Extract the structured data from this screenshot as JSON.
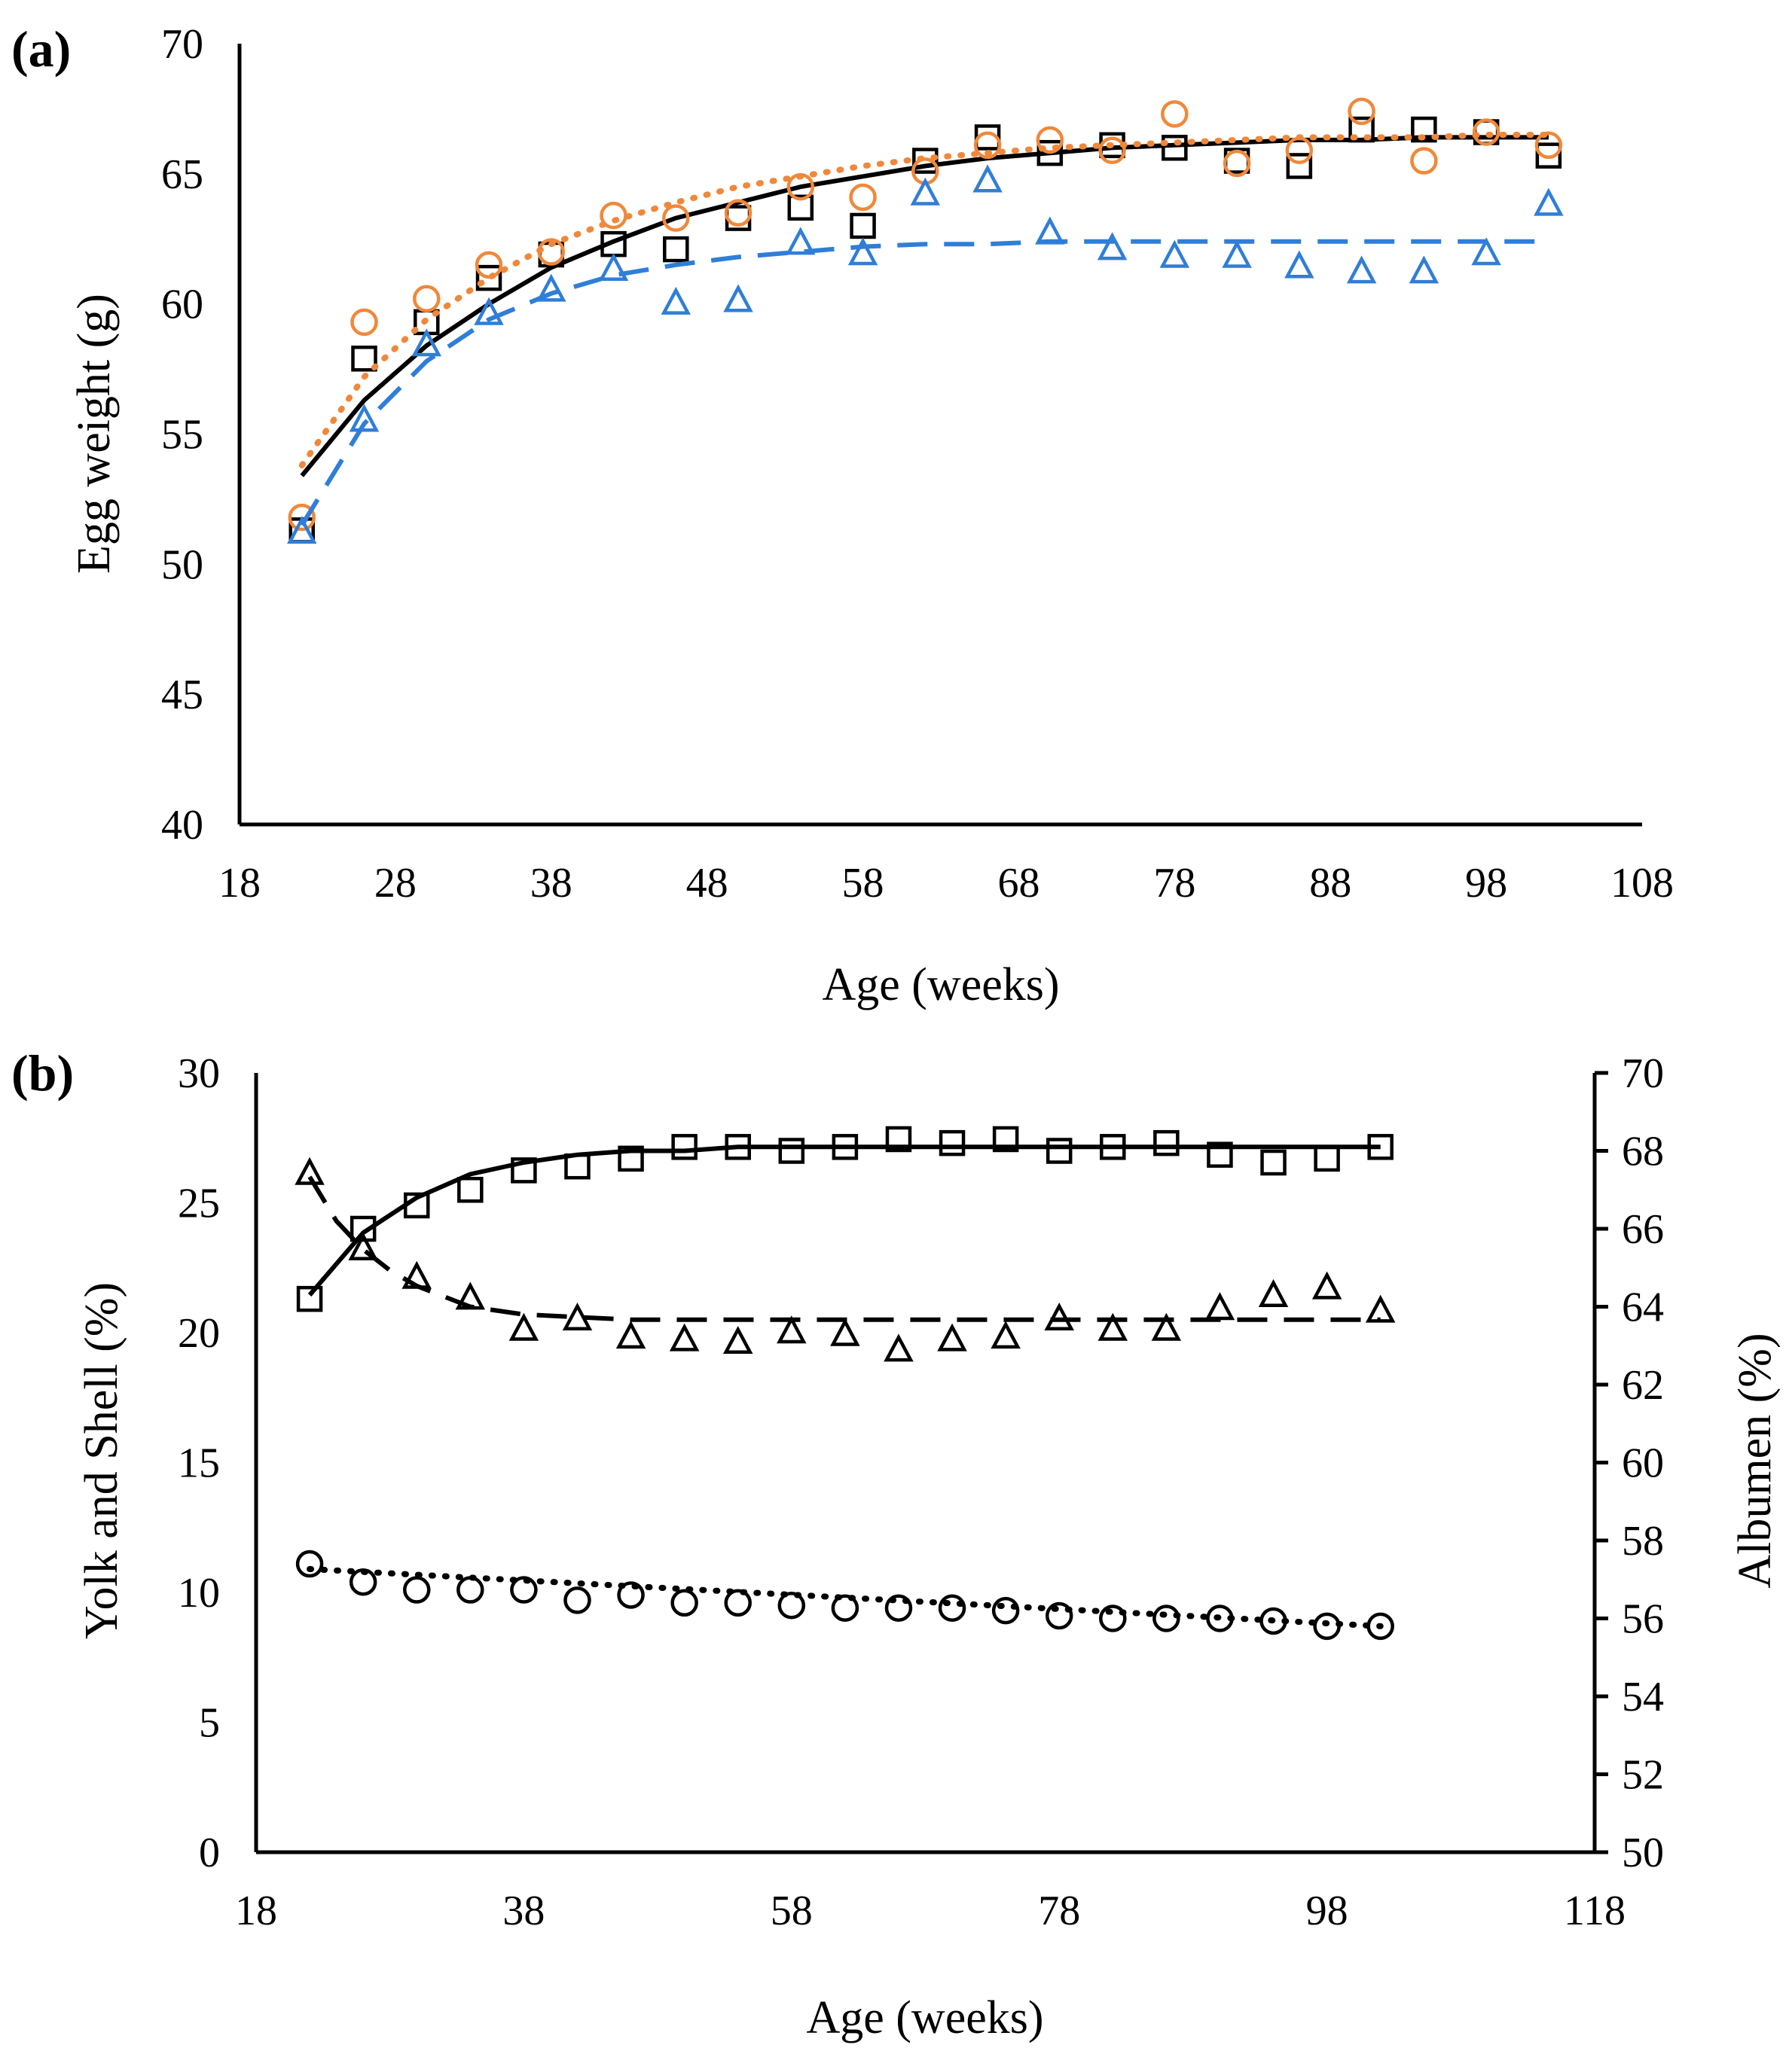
{
  "colors": {
    "black": "#000000",
    "orange": "#f0883a",
    "blue": "#2f7ed8"
  },
  "chart_data": [
    {
      "panel_label": "(a)",
      "type": "scatter",
      "xlabel": "Age (weeks)",
      "ylabel": "Egg weight (g)",
      "xlim": [
        18,
        108
      ],
      "ylim": [
        40,
        70
      ],
      "xticks": [
        18,
        28,
        38,
        48,
        58,
        68,
        78,
        88,
        98,
        108
      ],
      "yticks": [
        40,
        45,
        50,
        55,
        60,
        65,
        70
      ],
      "series": [
        {
          "name": "Squares (solid trend)",
          "marker": "square",
          "color": "#000000",
          "trend_style": "solid",
          "x": [
            22,
            26,
            30,
            34,
            38,
            42,
            46,
            50,
            54,
            58,
            62,
            66,
            70,
            74,
            78,
            82,
            86,
            90,
            94,
            98,
            102
          ],
          "y": [
            51.3,
            57.9,
            59.3,
            61.0,
            61.9,
            62.3,
            62.1,
            63.3,
            63.7,
            63.0,
            65.5,
            66.4,
            65.8,
            66.1,
            66.0,
            65.5,
            65.3,
            66.7,
            66.7,
            66.6,
            65.7
          ],
          "trend_x": [
            22,
            26,
            30,
            34,
            38,
            42,
            46,
            50,
            54,
            58,
            62,
            66,
            70,
            74,
            78,
            82,
            86,
            90,
            94,
            98,
            102
          ],
          "trend_y": [
            53.4,
            56.3,
            58.4,
            60.0,
            61.4,
            62.4,
            63.3,
            63.9,
            64.5,
            64.9,
            65.3,
            65.6,
            65.8,
            66.0,
            66.1,
            66.2,
            66.3,
            66.3,
            66.4,
            66.4,
            66.4
          ]
        },
        {
          "name": "Circles (dotted trend)",
          "marker": "circle",
          "color": "#f0883a",
          "trend_style": "dotted",
          "x": [
            22,
            26,
            30,
            34,
            38,
            42,
            46,
            50,
            54,
            58,
            62,
            66,
            70,
            74,
            78,
            82,
            86,
            90,
            94,
            98,
            102
          ],
          "y": [
            51.8,
            59.3,
            60.2,
            61.5,
            62.0,
            63.4,
            63.3,
            63.5,
            64.5,
            64.1,
            65.1,
            66.1,
            66.3,
            65.9,
            67.3,
            65.4,
            65.9,
            67.4,
            65.5,
            66.6,
            66.1
          ],
          "trend_x": [
            22,
            26,
            30,
            34,
            38,
            42,
            46,
            50,
            54,
            58,
            62,
            66,
            70,
            74,
            78,
            82,
            86,
            90,
            94,
            98,
            102
          ],
          "trend_y": [
            53.8,
            57.2,
            59.4,
            61.0,
            62.3,
            63.2,
            63.9,
            64.5,
            64.9,
            65.3,
            65.6,
            65.8,
            66.0,
            66.1,
            66.2,
            66.3,
            66.4,
            66.4,
            66.4,
            66.5,
            66.5
          ]
        },
        {
          "name": "Triangles (dashed trend)",
          "marker": "triangle",
          "color": "#2f7ed8",
          "trend_style": "dashed",
          "x": [
            22,
            26,
            30,
            34,
            38,
            42,
            46,
            50,
            54,
            58,
            62,
            66,
            70,
            74,
            78,
            82,
            86,
            90,
            94,
            98,
            102
          ],
          "y": [
            51.2,
            55.5,
            58.4,
            59.6,
            60.5,
            61.3,
            60.0,
            60.1,
            62.3,
            61.9,
            64.2,
            64.7,
            62.7,
            62.1,
            61.8,
            61.8,
            61.4,
            61.2,
            61.2,
            61.9,
            63.8
          ],
          "trend_x": [
            22,
            26,
            30,
            34,
            38,
            42,
            46,
            50,
            54,
            58,
            62,
            66,
            70,
            74,
            78,
            82,
            86,
            90,
            94,
            98,
            102
          ],
          "trend_y": [
            51.5,
            55.4,
            57.8,
            59.4,
            60.4,
            61.1,
            61.5,
            61.8,
            62.0,
            62.2,
            62.3,
            62.3,
            62.4,
            62.4,
            62.4,
            62.4,
            62.4,
            62.4,
            62.4,
            62.4,
            62.4
          ]
        }
      ]
    },
    {
      "panel_label": "(b)",
      "type": "scatter",
      "xlabel": "Age (weeks)",
      "ylabel": "Yolk and Shell (%)",
      "ylabel_right": "Albumen (%)",
      "xlim": [
        18,
        118
      ],
      "ylim": [
        0,
        30
      ],
      "ylim_right": [
        50,
        70
      ],
      "xticks": [
        18,
        38,
        58,
        78,
        98,
        118
      ],
      "yticks": [
        0,
        5,
        10,
        15,
        20,
        25,
        30
      ],
      "yticks_right": [
        50,
        52,
        54,
        56,
        58,
        60,
        62,
        64,
        66,
        68,
        70
      ],
      "series": [
        {
          "name": "Squares (solid trend)",
          "marker": "square",
          "axis": "right",
          "color": "#000000",
          "trend_style": "solid",
          "x": [
            22,
            26,
            30,
            34,
            38,
            42,
            46,
            50,
            54,
            58,
            62,
            66,
            70,
            74,
            78,
            82,
            86,
            90,
            94,
            98,
            102
          ],
          "y": [
            64.2,
            66.0,
            66.6,
            67.0,
            67.5,
            67.6,
            67.8,
            68.1,
            68.1,
            68.0,
            68.1,
            68.3,
            68.2,
            68.3,
            68.0,
            68.1,
            68.2,
            67.9,
            67.7,
            67.8,
            68.1
          ],
          "trend_x": [
            22,
            26,
            30,
            34,
            38,
            42,
            46,
            50,
            54,
            58,
            62,
            66,
            70,
            74,
            78,
            82,
            86,
            90,
            94,
            98,
            102
          ],
          "trend_y": [
            64.3,
            65.9,
            66.8,
            67.4,
            67.7,
            67.9,
            68.0,
            68.0,
            68.1,
            68.1,
            68.1,
            68.1,
            68.1,
            68.1,
            68.1,
            68.1,
            68.1,
            68.1,
            68.1,
            68.1,
            68.1
          ]
        },
        {
          "name": "Triangles (dashed trend)",
          "marker": "triangle",
          "axis": "left",
          "color": "#000000",
          "trend_style": "dashed",
          "x": [
            22,
            26,
            30,
            34,
            38,
            42,
            46,
            50,
            54,
            58,
            62,
            66,
            70,
            74,
            78,
            82,
            86,
            90,
            94,
            98,
            102
          ],
          "y": [
            26.1,
            23.2,
            22.1,
            21.3,
            20.1,
            20.5,
            19.8,
            19.7,
            19.6,
            20.0,
            19.9,
            19.3,
            19.7,
            19.8,
            20.5,
            20.1,
            20.1,
            20.9,
            21.4,
            21.7,
            20.8
          ],
          "trend_x": [
            22,
            24,
            26,
            28,
            30,
            34,
            38,
            42,
            46,
            50,
            54,
            58,
            62,
            66,
            70,
            74,
            78,
            82,
            86,
            90,
            94,
            98,
            102
          ],
          "trend_y": [
            26.0,
            24.3,
            23.2,
            22.4,
            21.8,
            21.0,
            20.7,
            20.6,
            20.5,
            20.5,
            20.5,
            20.5,
            20.5,
            20.5,
            20.5,
            20.5,
            20.5,
            20.5,
            20.5,
            20.5,
            20.5,
            20.5,
            20.5
          ]
        },
        {
          "name": "Circles (dotted trend)",
          "marker": "circle",
          "axis": "left",
          "color": "#000000",
          "trend_style": "dotted",
          "x": [
            22,
            26,
            30,
            34,
            38,
            42,
            46,
            50,
            54,
            58,
            62,
            66,
            70,
            74,
            78,
            82,
            86,
            90,
            94,
            98,
            102
          ],
          "y": [
            11.1,
            10.4,
            10.1,
            10.1,
            10.1,
            9.7,
            9.9,
            9.6,
            9.6,
            9.5,
            9.4,
            9.4,
            9.4,
            9.3,
            9.1,
            9.0,
            9.0,
            9.0,
            8.9,
            8.7,
            8.7
          ],
          "trend_x": [
            22,
            102
          ],
          "trend_y": [
            10.9,
            8.7
          ]
        }
      ]
    }
  ]
}
